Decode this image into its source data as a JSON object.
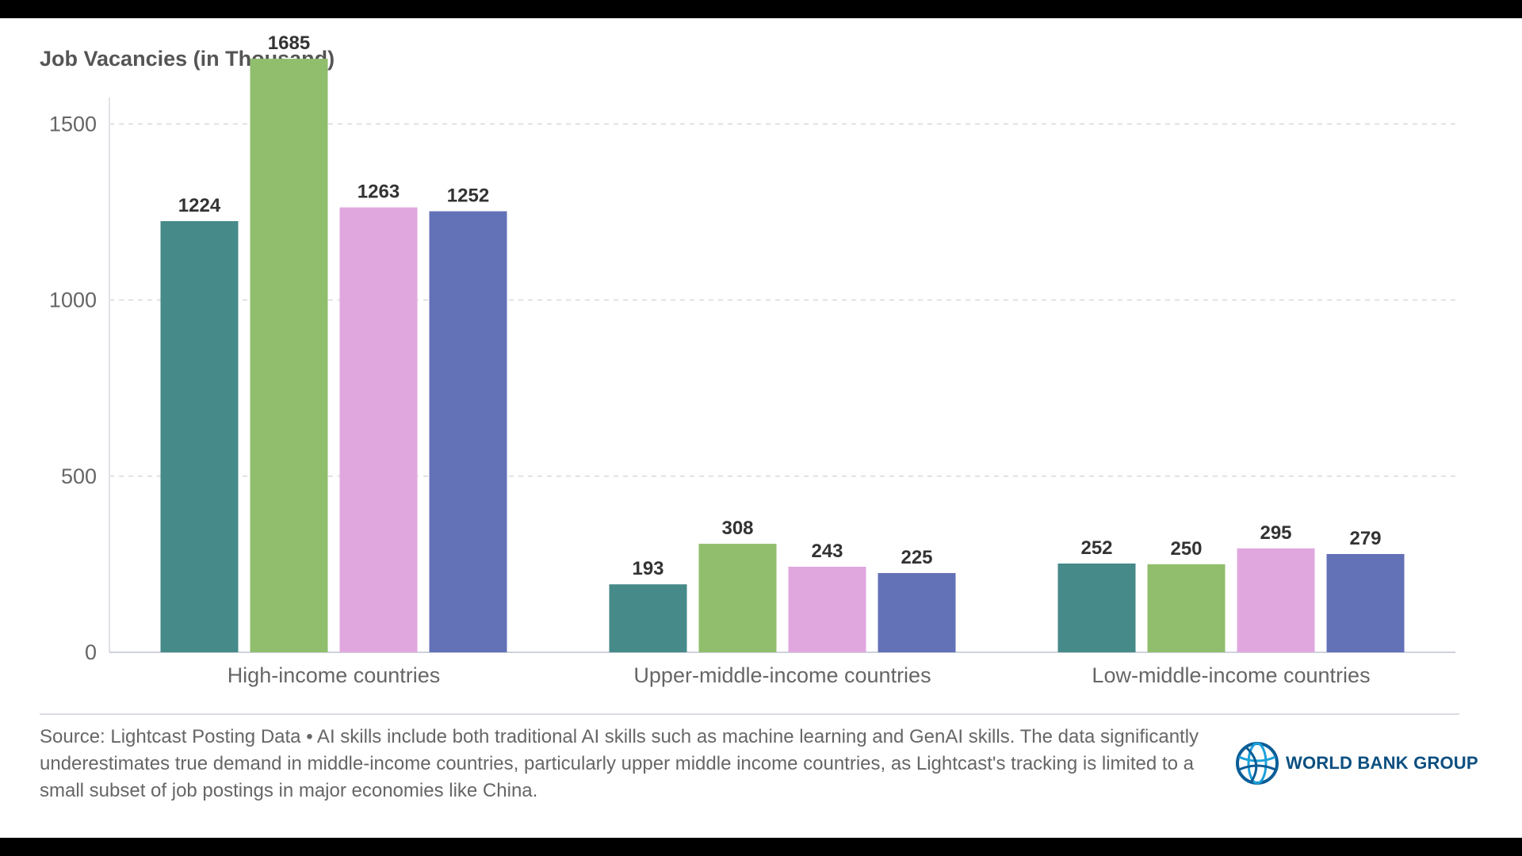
{
  "title": "Job Vacancies (in Thousand)",
  "source": "Source: Lightcast Posting Data • AI skills include both traditional AI skills such as machine learning and GenAI skills. The data significantly underestimates true demand in middle-income countries, particularly upper middle income countries, as Lightcast's tracking is limited to a small subset of job postings in major economies like China.",
  "logo": {
    "text": "WORLD BANK GROUP",
    "icon": "globe-icon"
  },
  "colors": {
    "series": [
      "#468a89",
      "#90be6d",
      "#e0a7df",
      "#6371b7"
    ],
    "grid": "#d8d8d8",
    "axis_text": "#666666",
    "label_text": "#333333"
  },
  "chart_data": {
    "type": "bar",
    "title": "Job Vacancies (in Thousand)",
    "xlabel": "",
    "ylabel": "",
    "ylim": [
      0,
      1800
    ],
    "yticks": [
      0,
      500,
      1000,
      1500
    ],
    "grid": true,
    "legend": "none",
    "categories": [
      "High-income countries",
      "Upper-middle-income countries",
      "Low-middle-income countries"
    ],
    "series": [
      {
        "values": [
          1224,
          193,
          252
        ]
      },
      {
        "values": [
          1685,
          308,
          250
        ]
      },
      {
        "values": [
          1263,
          243,
          295
        ]
      },
      {
        "values": [
          1252,
          225,
          279
        ]
      }
    ]
  }
}
